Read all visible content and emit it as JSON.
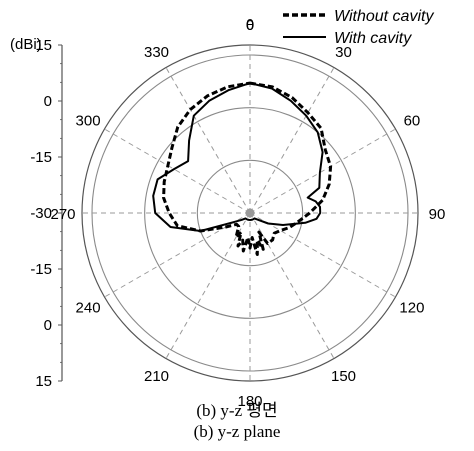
{
  "chart_data": {
    "type": "polar",
    "unit_label": "(dBi)",
    "angle_symbol": "θ",
    "radial_axis_labels": [
      "15",
      "0",
      "-15",
      "-30",
      "-15",
      "0",
      "15"
    ],
    "radial_levels_dBi": [
      15,
      0,
      -15,
      -30
    ],
    "r_range_dBi": [
      -30,
      15
    ],
    "angle_ticks": [
      "0",
      "30",
      "60",
      "90",
      "120",
      "150",
      "180",
      "210",
      "240",
      "270",
      "300",
      "330"
    ],
    "angle_step_deg": 30,
    "grid": true,
    "legend_position": "top-right",
    "series": [
      {
        "name": "Without cavity",
        "style": "dashed",
        "color": "#000000",
        "angles_deg": [
          0,
          10,
          20,
          30,
          40,
          50,
          60,
          70,
          80,
          90,
          100,
          110,
          120,
          130,
          140,
          150,
          155,
          160,
          165,
          170,
          175,
          180,
          185,
          190,
          195,
          200,
          205,
          210,
          220,
          230,
          240,
          250,
          260,
          270,
          280,
          290,
          300,
          310,
          320,
          330,
          340,
          350
        ],
        "values_dBi": [
          7,
          6.5,
          5,
          3,
          1.5,
          -2,
          -3.5,
          -6,
          -9,
          -13,
          -16,
          -18,
          -20,
          -21,
          -20,
          -20,
          -24,
          -19,
          -22,
          -18,
          -23,
          -20,
          -23,
          -19,
          -22,
          -20,
          -24,
          -22,
          -25,
          -25,
          -22,
          -15,
          -9,
          -7,
          -5,
          -4,
          -3,
          -1,
          2,
          4,
          5.5,
          6.5
        ]
      },
      {
        "name": "With cavity",
        "style": "solid",
        "color": "#000000",
        "angles_deg": [
          0,
          10,
          20,
          30,
          40,
          50,
          60,
          70,
          75,
          80,
          85,
          90,
          95,
          100,
          110,
          120,
          130,
          140,
          150,
          160,
          170,
          180,
          190,
          200,
          210,
          220,
          230,
          240,
          250,
          260,
          270,
          280,
          290,
          300,
          310,
          320,
          330,
          340,
          350
        ],
        "values_dBi": [
          7,
          6,
          4,
          2,
          0,
          -3,
          -7,
          -9,
          -13,
          -11,
          -10,
          -10,
          -11,
          -14,
          -20,
          -24,
          -27,
          -28,
          -28,
          -28,
          -28,
          -28,
          -28,
          -28,
          -28,
          -28,
          -27,
          -25,
          -15,
          -7,
          -3,
          -2,
          -2,
          -5,
          -7,
          -3,
          2,
          4,
          5.5
        ]
      }
    ]
  },
  "captions": {
    "korean": "(b) y-z 평면",
    "english": "(b) y-z plane"
  }
}
